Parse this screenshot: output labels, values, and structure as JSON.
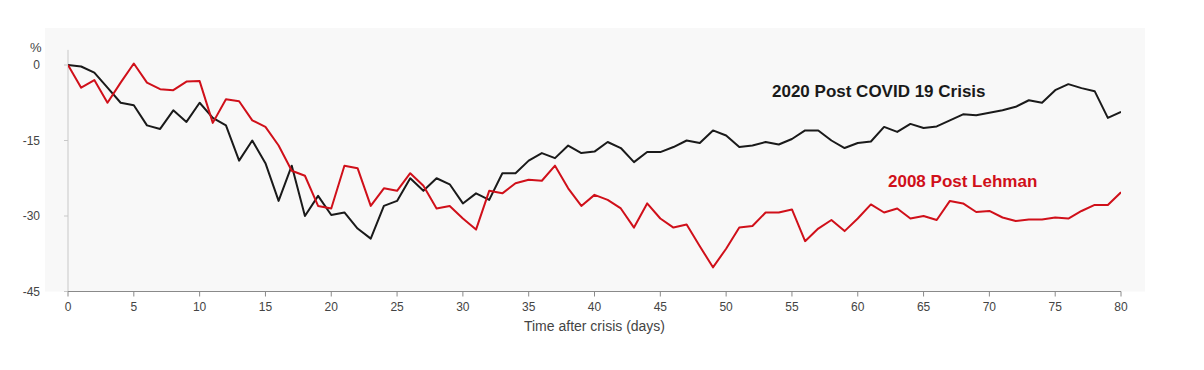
{
  "chart_data": {
    "type": "line",
    "y_unit_label": "%",
    "x_label": "Time after crisis (days)",
    "x": [
      0,
      1,
      2,
      3,
      4,
      5,
      6,
      7,
      8,
      9,
      10,
      11,
      12,
      13,
      14,
      15,
      16,
      17,
      18,
      19,
      20,
      21,
      22,
      23,
      24,
      25,
      26,
      27,
      28,
      29,
      30,
      31,
      32,
      33,
      34,
      35,
      36,
      37,
      38,
      39,
      40,
      41,
      42,
      43,
      44,
      45,
      46,
      47,
      48,
      49,
      50,
      51,
      52,
      53,
      54,
      55,
      56,
      57,
      58,
      59,
      60,
      61,
      62,
      63,
      64,
      65,
      66,
      67,
      68,
      69,
      70,
      71,
      72,
      73,
      74,
      75,
      76,
      77,
      78,
      79,
      80
    ],
    "series": [
      {
        "name": "2020 Post COVID 19 Crisis",
        "color": "#1a1a1a",
        "values": [
          0,
          -0.3,
          -1.5,
          -4.5,
          -7.5,
          -8,
          -12,
          -12.7,
          -9,
          -11.3,
          -7.5,
          -10.5,
          -12,
          -19,
          -15,
          -19.5,
          -27,
          -20,
          -30,
          -26,
          -29.8,
          -29.3,
          -32.5,
          -34.5,
          -28,
          -27,
          -22.5,
          -25,
          -22.5,
          -23.7,
          -27.5,
          -25.5,
          -26.8,
          -21.5,
          -21.5,
          -19,
          -17.5,
          -18.5,
          -16,
          -17.5,
          -17.2,
          -15.3,
          -16.5,
          -19.3,
          -17.3,
          -17.3,
          -16.3,
          -15,
          -15.5,
          -13,
          -14,
          -16.3,
          -16,
          -15.3,
          -15.8,
          -14.7,
          -13,
          -13,
          -15,
          -16.5,
          -15.5,
          -15.2,
          -12.3,
          -13.3,
          -11.7,
          -12.5,
          -12.2,
          -11,
          -9.8,
          -10,
          -9.5,
          -9,
          -8.3,
          -7,
          -7.5,
          -5,
          -3.8,
          -4.6,
          -5.2,
          -10.5,
          -9.3
        ]
      },
      {
        "name": "2008 Post Lehman",
        "color": "#d0101a",
        "values": [
          0,
          -4.5,
          -3,
          -7.5,
          -3.5,
          0.3,
          -3.5,
          -4.8,
          -5,
          -3.3,
          -3.2,
          -11.5,
          -6.8,
          -7.2,
          -11,
          -12.3,
          -16,
          -21,
          -22,
          -28,
          -28.5,
          -20,
          -20.5,
          -28,
          -24.5,
          -25,
          -21.5,
          -24,
          -28.5,
          -28,
          -30.5,
          -32.7,
          -25,
          -25.5,
          -23.5,
          -22.8,
          -23,
          -20,
          -24.5,
          -28,
          -25.8,
          -26.8,
          -28.5,
          -32.3,
          -27.5,
          -30.5,
          -32.3,
          -31.7,
          -36,
          -40.2,
          -36.5,
          -32.3,
          -32,
          -29.3,
          -29.3,
          -28.7,
          -35,
          -32.5,
          -30.8,
          -33,
          -30.5,
          -27.7,
          -29.3,
          -28.5,
          -30.5,
          -30,
          -30.8,
          -27,
          -27.5,
          -29.2,
          -29,
          -30.3,
          -31,
          -30.7,
          -30.7,
          -30.3,
          -30.5,
          -29,
          -27.8,
          -27.8,
          -25.3
        ]
      }
    ],
    "xlim": [
      0,
      80
    ],
    "xticks": [
      0,
      5,
      10,
      15,
      20,
      25,
      30,
      35,
      40,
      45,
      50,
      55,
      60,
      65,
      70,
      75,
      80
    ],
    "ylim": [
      -45,
      3
    ],
    "yticks": [
      0,
      -15,
      -30,
      -45
    ],
    "grid": false
  }
}
